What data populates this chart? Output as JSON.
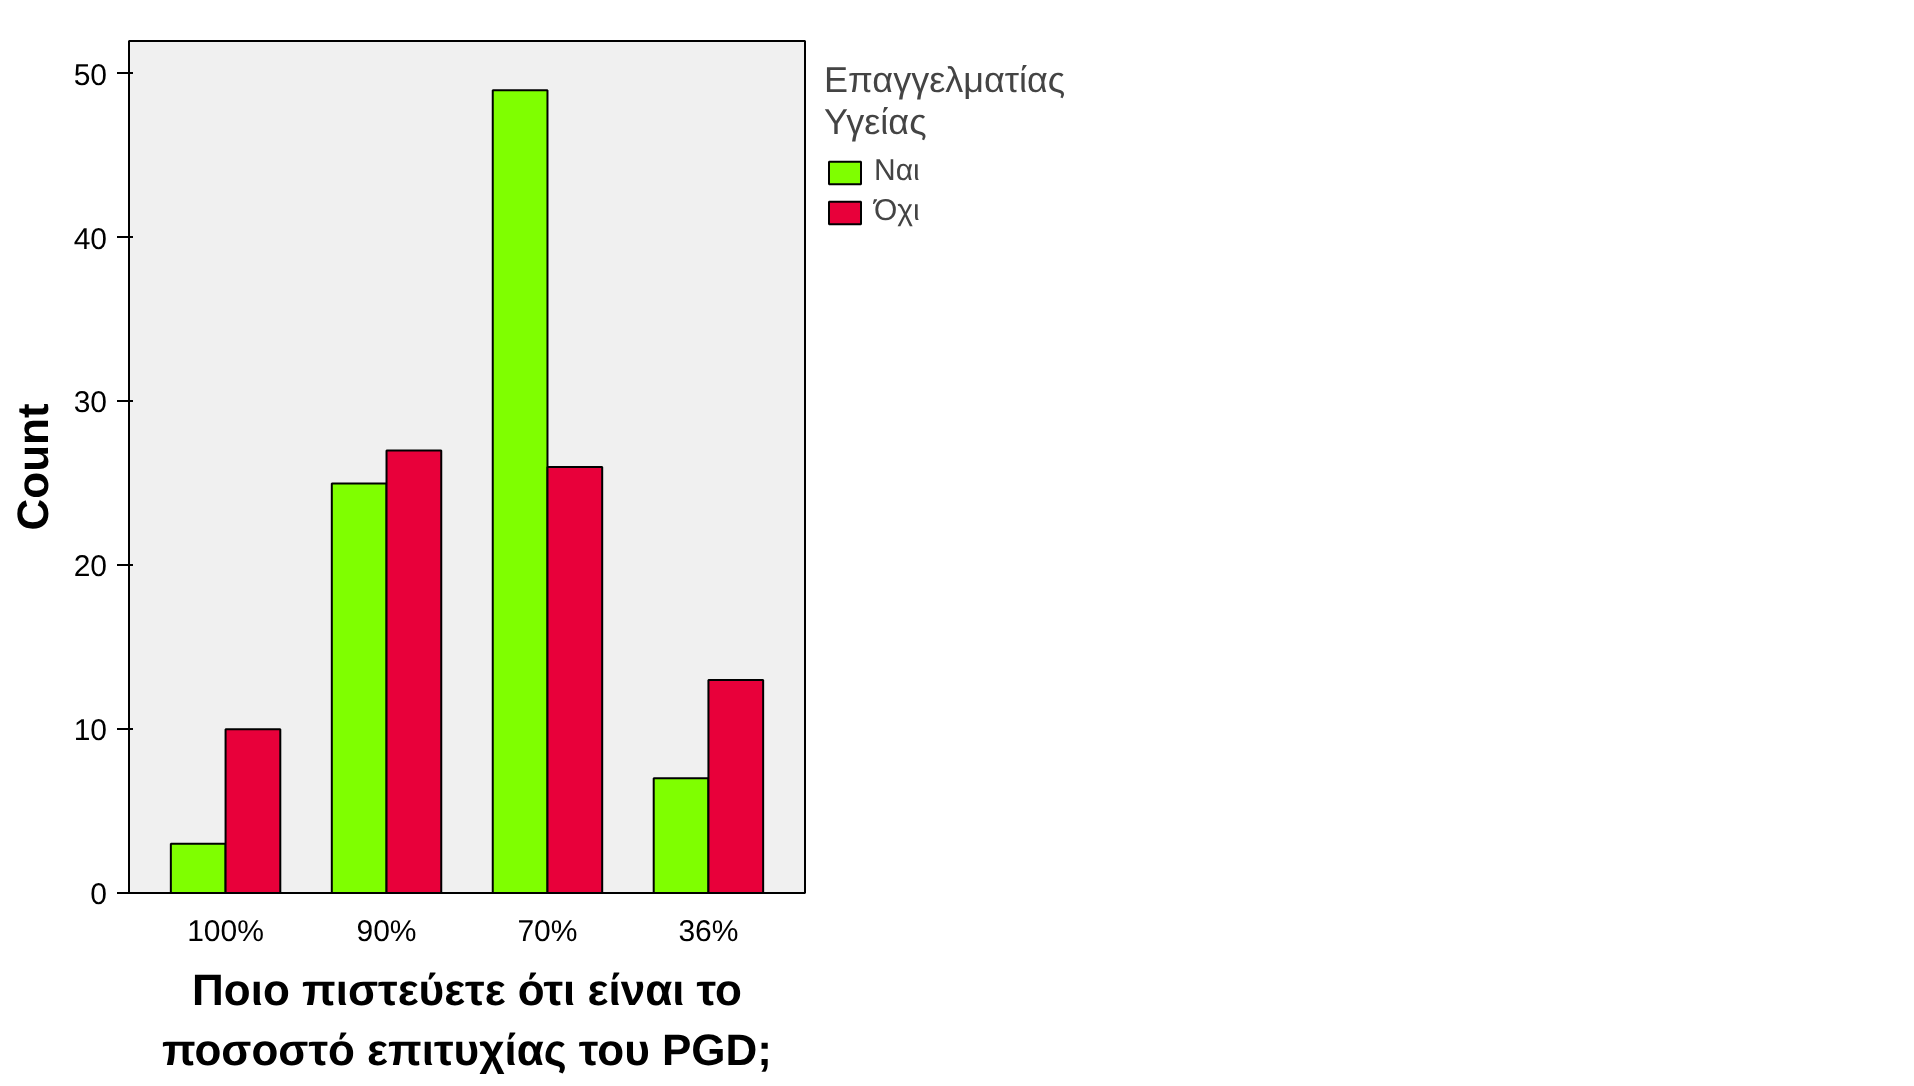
{
  "chart_data": {
    "type": "bar",
    "xlabel": "Ποιο πιστεύετε ότι είναι το\nποσοστό επιτυχίας του PGD;",
    "ylabel": "Count",
    "legend_title": "Επαγγελματίας\nΥγείας",
    "categories": [
      "100%",
      "90%",
      "70%",
      "36%"
    ],
    "series": [
      {
        "name": "Ναι",
        "color": "#7fff00",
        "values": [
          3,
          25,
          49,
          7
        ]
      },
      {
        "name": "Όχι",
        "color": "#e8003a",
        "values": [
          10,
          27,
          26,
          13
        ]
      }
    ],
    "ylim": [
      0,
      52
    ],
    "yticks": [
      0,
      10,
      20,
      30,
      40,
      50
    ],
    "grid": false,
    "legend": "right"
  }
}
